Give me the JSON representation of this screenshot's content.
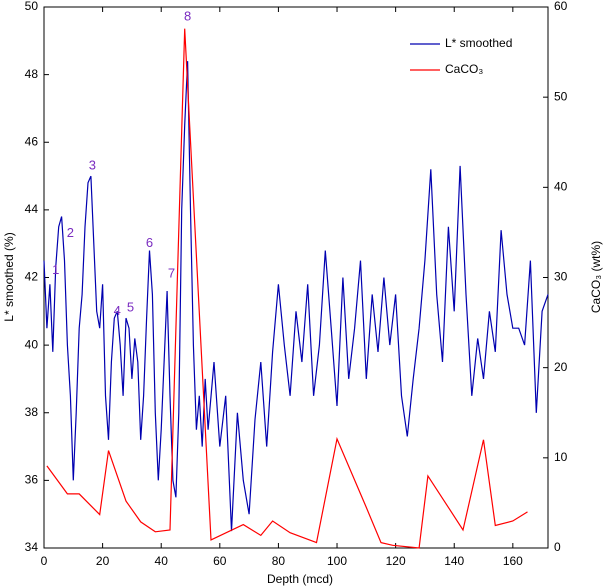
{
  "chart_data": {
    "type": "line",
    "x_label": "Depth (mcd)",
    "y_label": "L* smoothed (%)",
    "y2_label": "CaCO₃ (wt%)",
    "xlim": [
      0,
      172
    ],
    "xticks": [
      0,
      20,
      40,
      60,
      80,
      100,
      120,
      140,
      160
    ],
    "ylim": [
      34,
      50
    ],
    "yticks": [
      34,
      36,
      38,
      40,
      42,
      44,
      46,
      48,
      50
    ],
    "y2lim": [
      0,
      60
    ],
    "y2ticks": [
      0,
      10,
      20,
      30,
      40,
      50,
      60
    ],
    "legend": "upper right",
    "annotations": [
      "1",
      "2",
      "3",
      "4",
      "5",
      "6",
      "7",
      "8"
    ],
    "series": [
      {
        "name": "L* smoothed",
        "color": "#0000b0",
        "axis": "y",
        "x": [
          0,
          1,
          2,
          3,
          4,
          5,
          6,
          7,
          8,
          9,
          10,
          11,
          12,
          13,
          14,
          15,
          16,
          17,
          18,
          19,
          20,
          21,
          22,
          23,
          24,
          25,
          26,
          27,
          28,
          29,
          30,
          31,
          32,
          33,
          34,
          35,
          36,
          37,
          38,
          39,
          40,
          41,
          42,
          43,
          44,
          45,
          46,
          47,
          48,
          49,
          50,
          51,
          52,
          53,
          54,
          55,
          56,
          58,
          60,
          62,
          64,
          66,
          68,
          70,
          72,
          74,
          76,
          78,
          80,
          82,
          84,
          86,
          88,
          90,
          92,
          94,
          96,
          98,
          100,
          102,
          104,
          106,
          108,
          110,
          112,
          114,
          116,
          118,
          120,
          122,
          124,
          126,
          128,
          130,
          132,
          134,
          136,
          138,
          140,
          142,
          144,
          146,
          148,
          150,
          152,
          154,
          156,
          158,
          160,
          162,
          164,
          166,
          168,
          170,
          172
        ],
        "values": [
          42.5,
          40.5,
          41.8,
          39.8,
          42.3,
          43.5,
          43.8,
          42.5,
          40.0,
          38.5,
          36.0,
          38.0,
          40.5,
          41.5,
          43.5,
          44.8,
          45.0,
          43.0,
          41.0,
          40.5,
          41.8,
          38.5,
          37.2,
          39.5,
          40.8,
          41.0,
          40.0,
          38.5,
          40.8,
          40.5,
          39.0,
          40.2,
          39.5,
          37.2,
          38.5,
          40.8,
          42.8,
          41.5,
          38.0,
          36.0,
          37.5,
          39.5,
          41.6,
          38.5,
          36.0,
          35.5,
          38.0,
          44.0,
          46.5,
          48.4,
          44.0,
          40.0,
          37.5,
          38.5,
          37.0,
          39.0,
          37.5,
          39.5,
          37.0,
          38.5,
          34.5,
          38.0,
          36.0,
          35.0,
          37.8,
          39.5,
          37.0,
          39.8,
          41.8,
          40.0,
          38.5,
          41.0,
          39.5,
          41.8,
          38.5,
          40.0,
          42.8,
          40.5,
          38.2,
          42.0,
          39.0,
          40.5,
          42.5,
          39.0,
          41.5,
          39.8,
          42.0,
          40.0,
          41.5,
          38.5,
          37.3,
          39.0,
          40.5,
          42.5,
          45.2,
          41.5,
          39.5,
          43.5,
          41.0,
          45.3,
          41.5,
          38.5,
          40.2,
          39.0,
          41.0,
          39.8,
          43.4,
          41.5,
          40.5,
          40.5,
          40.0,
          42.5,
          38.0,
          41.0,
          41.5
        ]
      },
      {
        "name": "CaCO₃",
        "color": "#ff0000",
        "axis": "y2",
        "x": [
          1,
          8,
          12,
          19,
          22,
          28,
          33,
          38,
          43,
          48,
          57,
          68,
          74,
          78,
          84,
          93,
          100,
          110,
          115,
          119,
          128,
          131,
          138,
          143,
          150,
          154,
          160,
          165
        ],
        "values": [
          9.1,
          6,
          6,
          3.7,
          10.8,
          5.2,
          2.9,
          1.8,
          2,
          57.6,
          0.9,
          2.6,
          1.4,
          3,
          1.7,
          0.6,
          12.1,
          4.5,
          0.6,
          0.3,
          0,
          8,
          4.5,
          2,
          12,
          2.5,
          3,
          4
        ]
      }
    ]
  }
}
